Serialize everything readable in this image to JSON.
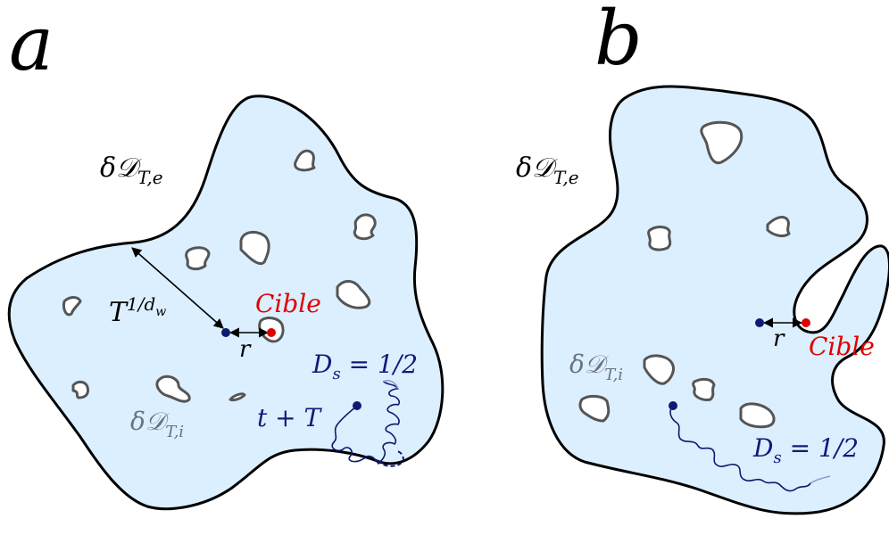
{
  "panel_a": {
    "letter": "a",
    "outer_boundary_label": "δ𝒟",
    "outer_boundary_sub": "T,e",
    "inner_boundary_label": "δ𝒟",
    "inner_boundary_sub": "T,i",
    "distance_label": "T",
    "distance_sup": "1/d",
    "distance_sup_sub": "w",
    "r_label": "r",
    "target_label": "Cible",
    "time_label": "t + T",
    "ds_label": "D",
    "ds_sub": "s",
    "ds_value": " = 1/2"
  },
  "panel_b": {
    "letter": "b",
    "outer_boundary_label": "δ𝒟",
    "outer_boundary_sub": "T,e",
    "inner_boundary_label": "δ𝒟",
    "inner_boundary_sub": "T,i",
    "r_label": "r",
    "target_label": "Cible",
    "ds_label": "D",
    "ds_sub": "s",
    "ds_value": " = 1/2"
  },
  "colors": {
    "domain_fill": "#dcefff",
    "target": "#e00000",
    "start_point": "#0d1a70",
    "walk": "#0d1a70",
    "inner_boundary_text": "#6b7380"
  }
}
